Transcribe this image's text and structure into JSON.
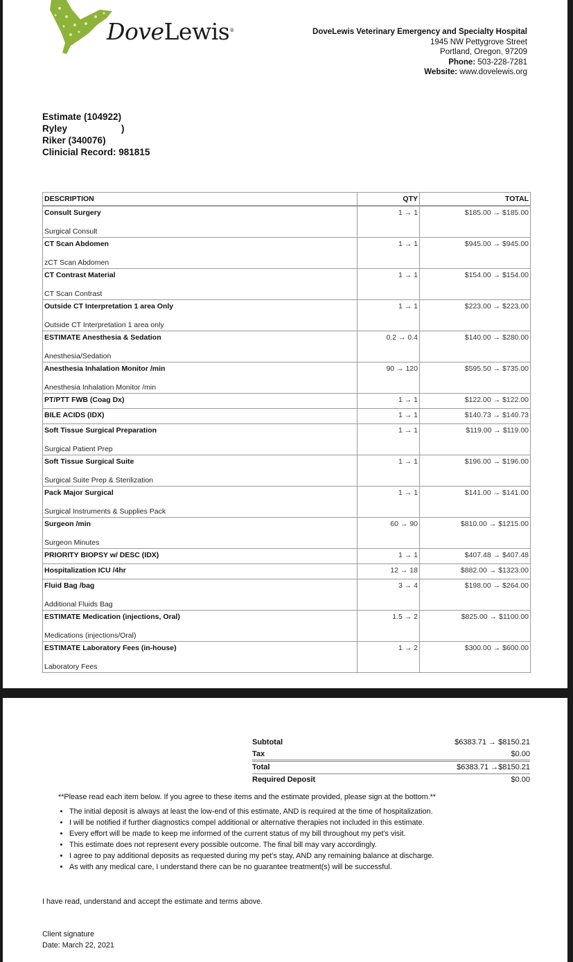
{
  "logo": {
    "word_italic": "Dove",
    "word_regular": "Lewis",
    "brand_color": "#8db33a"
  },
  "hospital": {
    "name": "DoveLewis Veterinary Emergency and Specialty Hospital",
    "street": "1945 NW Pettygrove Street",
    "city": "Portland, Oregon, 97209",
    "phone_label": "Phone:",
    "phone": "503-228-7281",
    "website_label": "Website:",
    "website": "www.dovelewis.org"
  },
  "patient": {
    "estimate": "Estimate (104922)",
    "client": "Ryley",
    "client_end": ")",
    "pet": "Riker (340076)",
    "record": "Clinicial Record: 981815"
  },
  "table": {
    "headers": {
      "description": "DESCRIPTION",
      "qty": "QTY",
      "total": "TOTAL"
    },
    "rows": [
      {
        "name": "Consult Surgery",
        "sub": "Surgical Consult",
        "qty": "1 → 1",
        "total": "$185.00 → $185.00"
      },
      {
        "name": "CT Scan Abdomen",
        "sub": "zCT Scan Abdomen",
        "qty": "1 → 1",
        "total": "$945.00 → $945.00"
      },
      {
        "name": "CT Contrast Material",
        "sub": "CT Scan Contrast",
        "qty": "1 → 1",
        "total": "$154.00 → $154.00"
      },
      {
        "name": "Outside CT Interpretation 1 area Only",
        "sub": "Outside CT Interpretation 1 area only",
        "qty": "1 → 1",
        "total": "$223.00 → $223.00"
      },
      {
        "name": "ESTIMATE Anesthesia & Sedation",
        "sub": "Anesthesia/Sedation",
        "qty": "0.2 → 0.4",
        "total": "$140.00 → $280.00"
      },
      {
        "name": "Anesthesia Inhalation Monitor /min",
        "sub": "Anesthesia Inhalation Monitor /min",
        "qty": "90 → 120",
        "total": "$595.50 → $735.00"
      },
      {
        "name": "PT/PTT FWB (Coag Dx)",
        "sub": "",
        "qty": "1 → 1",
        "total": "$122.00 → $122.00"
      },
      {
        "name": "BILE ACIDS (IDX)",
        "sub": "",
        "qty": "1 → 1",
        "total": "$140.73 → $140.73"
      },
      {
        "name": "Soft Tissue Surgical Preparation",
        "sub": "Surgical Patient Prep",
        "qty": "1 → 1",
        "total": "$119.00 → $119.00"
      },
      {
        "name": "Soft Tissue Surgical Suite",
        "sub": "Surgical Suite Prep & Sterilization",
        "qty": "1 → 1",
        "total": "$196.00 → $196.00"
      },
      {
        "name": "Pack Major Surgical",
        "sub": "Surgical Instruments & Supplies Pack",
        "qty": "1 → 1",
        "total": "$141.00 → $141.00"
      },
      {
        "name": "Surgeon /min",
        "sub": "Surgeon Minutes",
        "qty": "60 → 90",
        "total": "$810.00 → $1215.00"
      },
      {
        "name": "PRIORITY BIOPSY w/ DESC (IDX)",
        "sub": "",
        "qty": "1 → 1",
        "total": "$407.48 → $407.48"
      },
      {
        "name": "Hospitalization ICU /4hr",
        "sub": "",
        "qty": "12 → 18",
        "total": "$882.00 → $1323.00"
      },
      {
        "name": "Fluid Bag /bag",
        "sub": "Additional Fluids Bag",
        "qty": "3 → 4",
        "total": "$198.00 → $264.00"
      },
      {
        "name": "ESTIMATE Medication (injections, Oral)",
        "sub": "Medications (injections/Oral)",
        "qty": "1.5 → 2",
        "total": "$825.00 → $1100.00"
      },
      {
        "name": "ESTIMATE Laboratory Fees (in-house)",
        "sub": "Laboratory Fees",
        "qty": "1 → 2",
        "total": "$300.00 → $600.00"
      }
    ]
  },
  "totals": {
    "subtotal_label": "Subtotal",
    "subtotal": "$6383.71 → $8150.21",
    "tax_label": "Tax",
    "tax": "$0.00",
    "total_label": "Total",
    "total": "$6383.71 →$8150.21",
    "deposit_label": "Required Deposit",
    "deposit": "$0.00"
  },
  "terms": {
    "note": "**Please read each item below.  If you agree to these items and the estimate provided, please sign at the bottom.**",
    "items": [
      "The initial deposit is always at least the low-end of this estimate, AND is required at the time of hospitalization.",
      "I will be notified if further diagnostics compel additional or alternative therapies not included in this estimate.",
      "Every effort will be made to keep me informed of the current status of my bill throughout my pet's visit.",
      "This estimate does not represent every possible outcome.  The final bill may vary accordingly.",
      "I agree to pay additional deposits as requested during my pet's stay, AND any remaining balance at discharge.",
      "As with any medical care, I understand there can be no guarantee treatment(s) will be successful."
    ],
    "accept": "I have read, understand and accept the estimate and terms above.",
    "signature": "Client signature",
    "date": "Date: March 22, 2021"
  }
}
